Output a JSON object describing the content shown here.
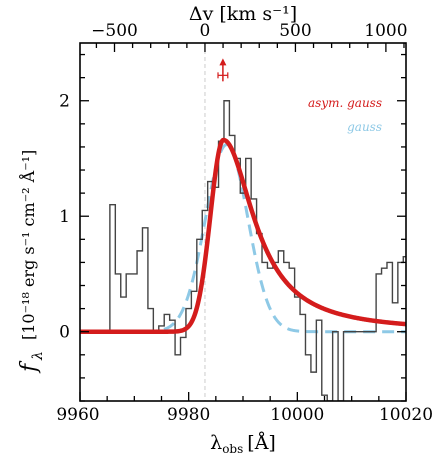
{
  "chart_data": {
    "type": "line",
    "xlabel_main": "λ",
    "xlabel_sub": "obs",
    "xlabel_unit": "[Å]",
    "top_xlabel": "Δv  [km s⁻¹]",
    "ylabel_f": "f",
    "ylabel_sub": "λ",
    "ylabel_unit": "[10⁻¹⁸ erg s⁻¹ cm⁻² Å⁻¹]",
    "xlim": [
      9960,
      10020
    ],
    "ylim": [
      -0.6,
      2.5
    ],
    "xticks": [
      9960,
      9980,
      10000,
      10020
    ],
    "xtick_labels": [
      "9960",
      "9980",
      "10000",
      "10020"
    ],
    "yticks": [
      0,
      1,
      2
    ],
    "ytick_labels": [
      "0",
      "1",
      "2"
    ],
    "top_ticks_kms": [
      -500,
      0,
      500,
      1000
    ],
    "top_tick_labels": [
      "−500",
      "0",
      "500",
      "1000"
    ],
    "top_v_zero_wavelength": 9983,
    "top_kms_per_angstrom": 30.03,
    "systemic_line_x": 9983,
    "spectrum_step": {
      "x": [
        9958.0,
        9961.5,
        9963.0,
        9964.5,
        9965.5,
        9966.5,
        9967.5,
        9968.5,
        9969.5,
        9970.5,
        9971.5,
        9972.5,
        9973.5,
        9974.5,
        9975.5,
        9976.5,
        9977.5,
        9978.5,
        9979.5,
        9980.5,
        9981.5,
        9982.5,
        9983.5,
        9984.5,
        9985.5,
        9986.5,
        9987.5,
        9988.5,
        9989.5,
        9990.5,
        9991.5,
        9992.5,
        9993.5,
        9994.5,
        9995.5,
        9996.5,
        9997.5,
        9998.5,
        9999.5,
        10000.5,
        10001.5,
        10002.5,
        10003.5,
        10004.5,
        10005.5,
        10006.5,
        10007.5,
        10008.5,
        10009.5,
        10010.5,
        10011.5,
        10012.5,
        10013.5,
        10014.5,
        10015.5,
        10016.5,
        10017.5,
        10018.5,
        10019.5
      ],
      "y": [
        0.0,
        0.0,
        0.0,
        0.0,
        1.1,
        0.5,
        0.3,
        0.5,
        0.5,
        0.7,
        0.9,
        0.2,
        0.0,
        0.05,
        0.15,
        0.1,
        -0.2,
        -0.05,
        0.2,
        0.35,
        0.8,
        1.05,
        1.3,
        1.25,
        1.65,
        2.0,
        1.7,
        1.5,
        1.2,
        1.5,
        1.15,
        0.85,
        0.6,
        0.55,
        0.6,
        0.7,
        0.6,
        0.55,
        0.3,
        0.15,
        -0.2,
        -0.35,
        0.1,
        -0.55,
        -0.6,
        0.0,
        -0.6,
        0.0,
        0.0,
        0.0,
        0.0,
        0.0,
        0.0,
        0.5,
        0.55,
        0.6,
        0.25,
        0.6,
        0.65
      ],
      "color": "#444444"
    },
    "model_asym": {
      "amplitude": 1.66,
      "peak": 9986.4,
      "sigma_left": 2.4,
      "sigma_right": 5.6,
      "color": "#d41c1c",
      "label": "asym. gauss"
    },
    "model_gauss": {
      "amplitude": 1.62,
      "center": 9987.0,
      "sigma": 3.9,
      "color": "#8ec9e6",
      "label": "gauss"
    },
    "peak_marker": {
      "x": 9986.3,
      "y": 2.22,
      "xerr": 0.9,
      "color": "#d41c1c"
    }
  }
}
